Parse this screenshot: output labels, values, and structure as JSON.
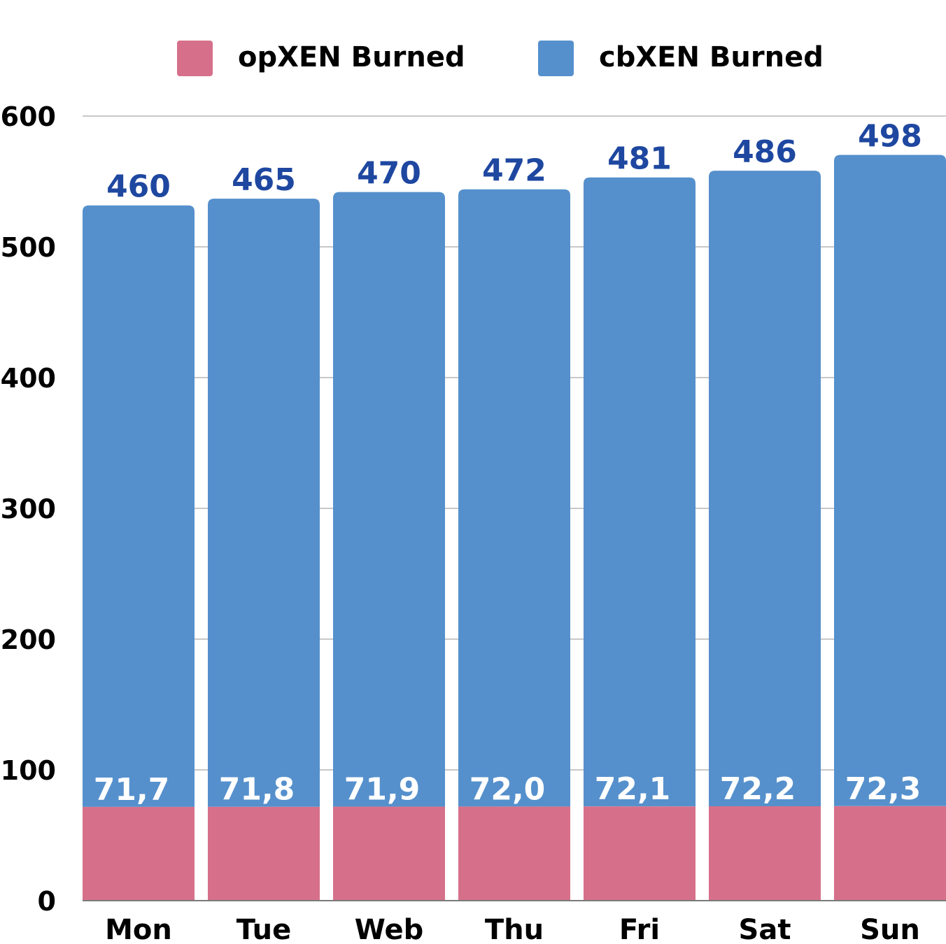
{
  "chart_data": {
    "type": "bar",
    "stacked": true,
    "categories": [
      "Mon",
      "Tue",
      "Web",
      "Thu",
      "Fri",
      "Sat",
      "Sun"
    ],
    "series": [
      {
        "name": "opXEN Burned",
        "values": [
          71.7,
          71.8,
          71.9,
          72.0,
          72.1,
          72.2,
          72.3
        ],
        "labels": [
          "71,7",
          "71,8",
          "71,9",
          "72,0",
          "72,1",
          "72,2",
          "72,3"
        ],
        "color": "#d6708a",
        "label_color": "#ffffff"
      },
      {
        "name": "cbXEN Burned",
        "values": [
          460,
          465,
          470,
          472,
          481,
          486,
          498
        ],
        "labels": [
          "460",
          "465",
          "470",
          "472",
          "481",
          "486",
          "498"
        ],
        "color": "#5590cc",
        "label_color": "#1e47a0"
      }
    ],
    "yticks": [
      "0",
      "100",
      "200",
      "300",
      "400",
      "500",
      "600"
    ],
    "ytick_values": [
      0,
      100,
      200,
      300,
      400,
      500,
      600
    ],
    "ylim": [
      0,
      600
    ],
    "grid": true,
    "legend_position": "top",
    "title": "",
    "xlabel": "",
    "ylabel": ""
  }
}
